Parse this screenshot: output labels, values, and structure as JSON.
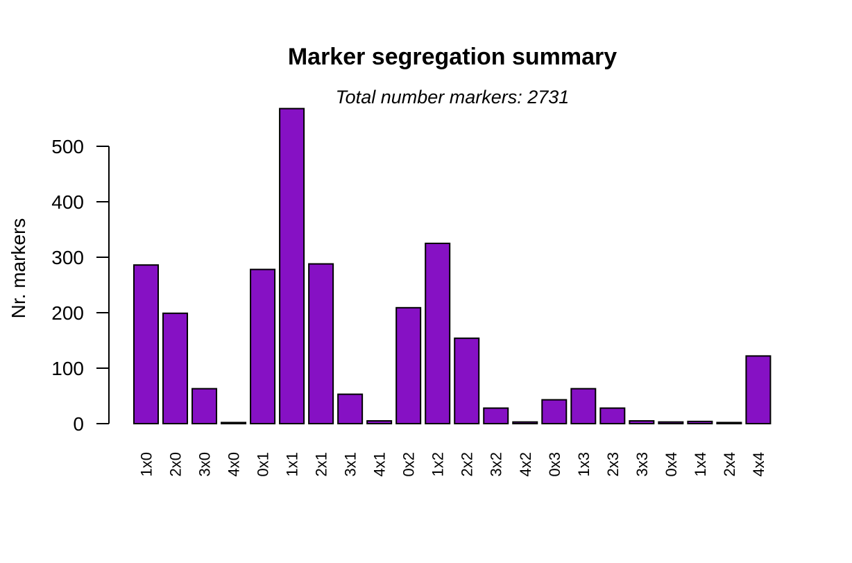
{
  "chart_data": {
    "type": "bar",
    "title": "Marker segregation summary",
    "subtitle": "Total number markers: 2731",
    "xlabel": "",
    "ylabel": "Nr. markers",
    "categories": [
      "1x0",
      "2x0",
      "3x0",
      "4x0",
      "0x1",
      "1x1",
      "2x1",
      "3x1",
      "4x1",
      "0x2",
      "1x2",
      "2x2",
      "3x2",
      "4x2",
      "0x3",
      "1x3",
      "2x3",
      "3x3",
      "0x4",
      "1x4",
      "2x4",
      "4x4"
    ],
    "values": [
      286,
      199,
      63,
      2,
      278,
      568,
      288,
      53,
      5,
      209,
      325,
      154,
      28,
      3,
      43,
      63,
      28,
      5,
      3,
      4,
      2,
      122
    ],
    "yticks": [
      0,
      100,
      200,
      300,
      400,
      500
    ],
    "ylim": [
      0,
      570
    ],
    "bar_color": "#8611c4",
    "grid": false,
    "legend": "none"
  }
}
